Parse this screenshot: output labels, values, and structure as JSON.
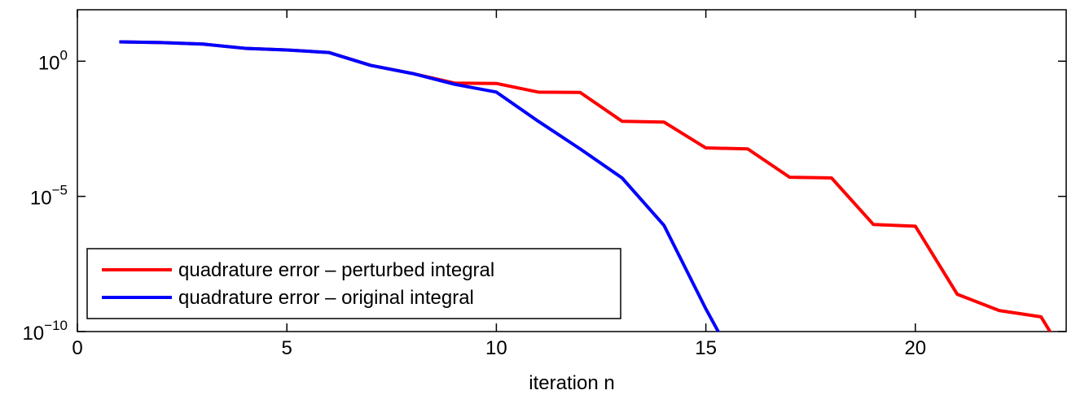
{
  "chart_data": {
    "type": "line",
    "xlabel": "iteration n",
    "x": [
      1,
      2,
      3,
      4,
      5,
      6,
      7,
      8,
      9,
      10,
      11,
      12,
      13,
      14,
      15,
      16,
      17,
      18,
      19,
      20,
      21,
      22,
      23,
      24
    ],
    "series": [
      {
        "name": "quadrature error – perturbed integral",
        "color": "#ff0000",
        "values": [
          5.2,
          4.9,
          4.3,
          3.0,
          2.6,
          2.1,
          0.7,
          0.35,
          0.155,
          0.15,
          0.072,
          0.07,
          0.006,
          0.0056,
          0.00062,
          0.00057,
          5.1e-05,
          4.8e-05,
          9.1e-07,
          7.9e-07,
          2.4e-09,
          6e-10,
          3.5e-10,
          1e-12
        ]
      },
      {
        "name": "quadrature error – original integral",
        "color": "#0000ff",
        "values": [
          5.2,
          4.9,
          4.3,
          3.0,
          2.6,
          2.1,
          0.7,
          0.35,
          0.14,
          0.072,
          0.006,
          0.00057,
          4.8e-05,
          8.5e-07,
          6.9e-10,
          1e-12,
          null,
          null,
          null,
          null,
          null,
          null,
          null,
          null
        ]
      }
    ],
    "xlim": [
      0,
      23.6
    ],
    "xticks": [
      0,
      5,
      10,
      15,
      20
    ],
    "ylim": [
      1e-10,
      80
    ],
    "log_y": true,
    "yticks": [
      {
        "value": 1e-10,
        "label": "10^−10"
      },
      {
        "value": 1e-05,
        "label": "10^−5"
      },
      {
        "value": 1,
        "label": "10^0"
      }
    ],
    "legend": "lower left",
    "grid": false
  }
}
